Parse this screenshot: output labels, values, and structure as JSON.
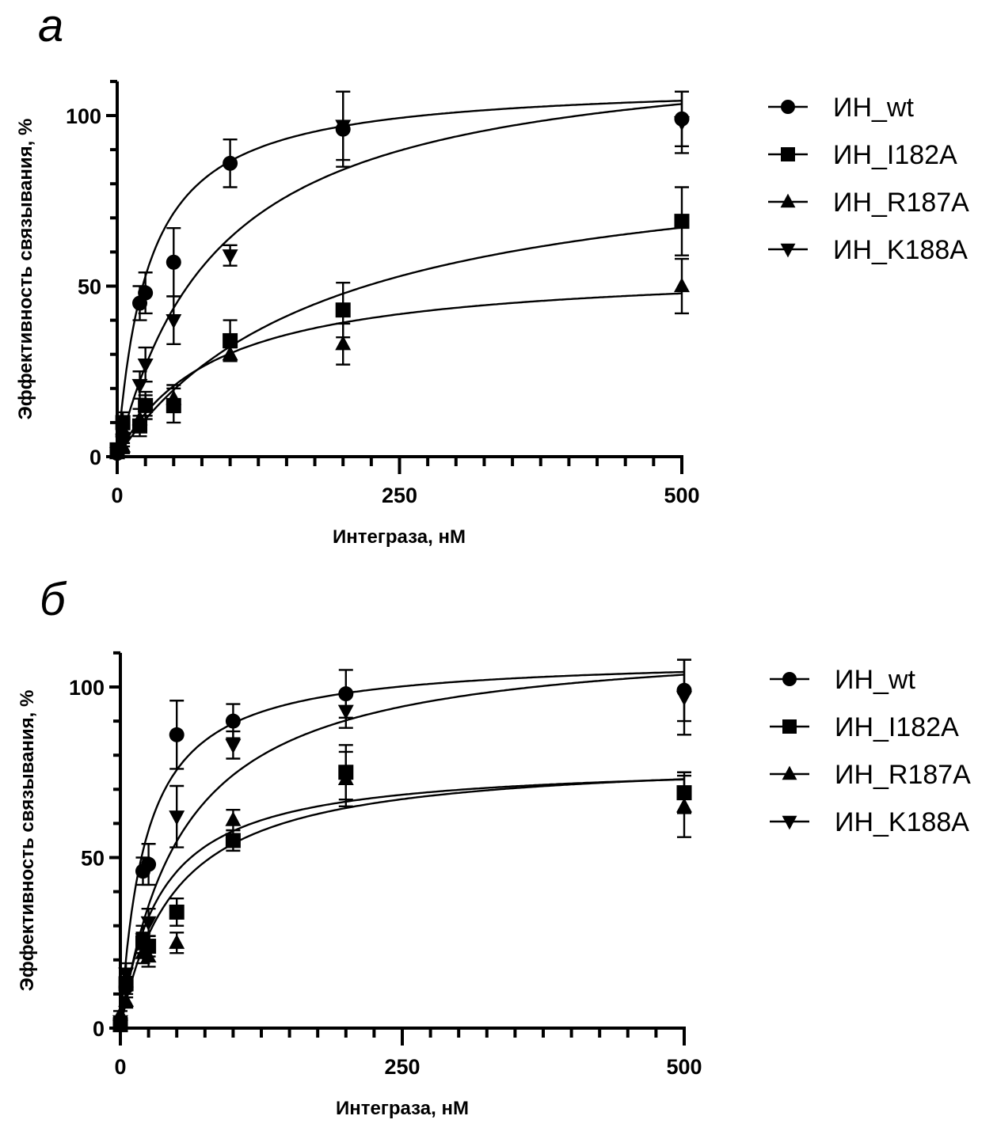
{
  "chart_data": [
    {
      "type": "scatter",
      "panel_label": "а",
      "title": "",
      "xlabel": "Интеграза, нМ",
      "ylabel": "Эффективность связывания, %",
      "xlim": [
        0,
        500
      ],
      "ylim": [
        0,
        110
      ],
      "xticks": [
        0,
        250,
        500
      ],
      "xtick_labels": [
        "0",
        "250",
        "500"
      ],
      "x_minor_step": 25,
      "yticks": [
        0,
        50,
        100
      ],
      "ytick_labels": [
        "0",
        "50",
        "100"
      ],
      "y_minor_step": 10,
      "grid": false,
      "legend_position": "right",
      "fit": "one-site saturation binding curve",
      "series": [
        {
          "name": "ИН_wt",
          "marker": "circle",
          "x": [
            0,
            5,
            20,
            25,
            50,
            100,
            200,
            500
          ],
          "y": [
            1,
            6,
            45,
            48,
            57,
            86,
            96,
            99
          ],
          "err": [
            1,
            2,
            5,
            6,
            10,
            7,
            11,
            8
          ],
          "fit_params": {
            "Bmax": 110,
            "Kd": 27
          }
        },
        {
          "name": "ИН_I182A",
          "marker": "square",
          "x": [
            0,
            5,
            20,
            25,
            50,
            100,
            200,
            500
          ],
          "y": [
            2,
            10,
            9,
            15,
            15,
            34,
            43,
            69
          ],
          "err": [
            1,
            3,
            3,
            4,
            5,
            6,
            8,
            10
          ],
          "fit_params": {
            "Bmax": 92,
            "Kd": 185
          }
        },
        {
          "name": "ИН_R187A",
          "marker": "triangle-up",
          "x": [
            0,
            5,
            20,
            25,
            50,
            100,
            200,
            500
          ],
          "y": [
            1,
            3,
            11,
            15,
            17,
            30,
            33,
            50
          ],
          "err": [
            1,
            2,
            3,
            3,
            4,
            2,
            6,
            8
          ],
          "fit_params": {
            "Bmax": 56,
            "Kd": 85
          }
        },
        {
          "name": "ИН_K188A",
          "marker": "triangle-down",
          "x": [
            0,
            5,
            20,
            25,
            50,
            100,
            200,
            500
          ],
          "y": [
            1,
            5,
            21,
            27,
            40,
            59,
            97,
            98
          ],
          "err": [
            1,
            2,
            4,
            5,
            7,
            3,
            10,
            9
          ],
          "fit_params": {
            "Bmax": 122,
            "Kd": 90
          }
        }
      ]
    },
    {
      "type": "scatter",
      "panel_label": "б",
      "title": "",
      "xlabel": "Интеграза, нМ",
      "ylabel": "Эффективность связывания, %",
      "xlim": [
        0,
        500
      ],
      "ylim": [
        0,
        110
      ],
      "xticks": [
        0,
        250,
        500
      ],
      "xtick_labels": [
        "0",
        "250",
        "500"
      ],
      "x_minor_step": 25,
      "yticks": [
        0,
        50,
        100
      ],
      "ytick_labels": [
        "0",
        "50",
        "100"
      ],
      "y_minor_step": 10,
      "grid": false,
      "legend_position": "right",
      "fit": "one-site saturation binding curve",
      "series": [
        {
          "name": "ИН_wt",
          "marker": "circle",
          "x": [
            0,
            5,
            20,
            25,
            50,
            100,
            200,
            500
          ],
          "y": [
            1,
            12,
            46,
            48,
            86,
            90,
            98,
            99
          ],
          "err": [
            1,
            3,
            4,
            6,
            10,
            5,
            7,
            9
          ],
          "fit_params": {
            "Bmax": 109,
            "Kd": 22
          }
        },
        {
          "name": "ИН_I182A",
          "marker": "square",
          "x": [
            0,
            5,
            20,
            25,
            50,
            100,
            200,
            500
          ],
          "y": [
            1,
            13,
            25,
            24,
            34,
            55,
            75,
            69
          ],
          "err": [
            1,
            2,
            3,
            3,
            4,
            3,
            8,
            6
          ],
          "fit_params": {
            "Bmax": 80,
            "Kd": 48
          }
        },
        {
          "name": "ИН_R187A",
          "marker": "triangle-up",
          "x": [
            0,
            5,
            20,
            25,
            50,
            100,
            200,
            500
          ],
          "y": [
            4,
            8,
            22,
            21,
            25,
            61,
            73,
            65
          ],
          "err": [
            1,
            2,
            3,
            3,
            3,
            3,
            8,
            9
          ],
          "fit_params": {
            "Bmax": 78,
            "Kd": 35
          }
        },
        {
          "name": "ИН_K188A",
          "marker": "triangle-down",
          "x": [
            0,
            5,
            20,
            25,
            50,
            100,
            200,
            500
          ],
          "y": [
            2,
            16,
            26,
            31,
            62,
            83,
            93,
            97
          ],
          "err": [
            1,
            3,
            4,
            4,
            9,
            4,
            5,
            11
          ],
          "fit_params": {
            "Bmax": 115,
            "Kd": 55
          }
        }
      ]
    }
  ]
}
